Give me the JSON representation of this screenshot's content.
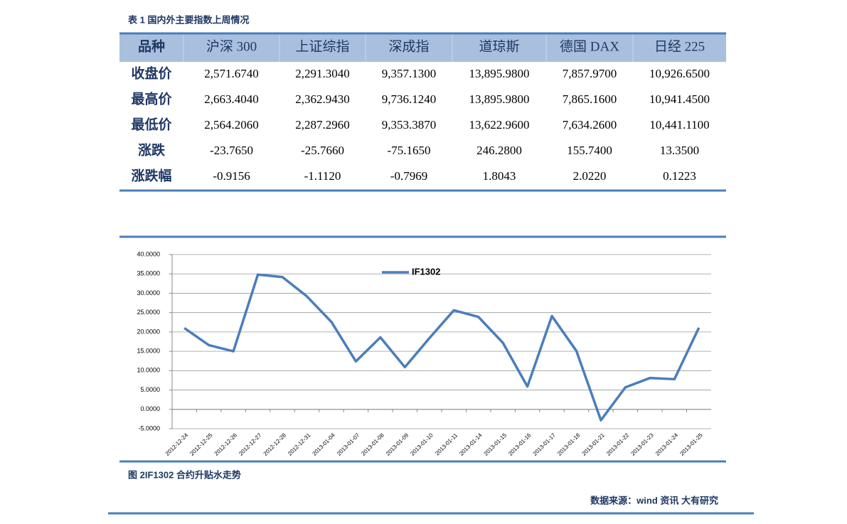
{
  "table": {
    "caption": "表 1 国内外主要指数上周情况",
    "header": [
      "品种",
      "沪深 300",
      "上证综指",
      "深成指",
      "道琼斯",
      "德国 DAX",
      "日经 225"
    ],
    "rows": [
      [
        "收盘价",
        "2,571.6740",
        "2,291.3040",
        "9,357.1300",
        "13,895.9800",
        "7,857.9700",
        "10,926.6500"
      ],
      [
        "最高价",
        "2,663.4040",
        "2,362.9430",
        "9,736.1240",
        "13,895.9800",
        "7,865.1600",
        "10,941.4500"
      ],
      [
        "最低价",
        "2,564.2060",
        "2,287.2960",
        "9,353.3870",
        "13,622.9600",
        "7,634.2600",
        "10,441.1100"
      ],
      [
        "涨跌",
        "-23.7650",
        "-25.7660",
        "-75.1650",
        "246.2800",
        "155.7400",
        "13.3500"
      ],
      [
        "涨跌幅",
        "-0.9156",
        "-1.1120",
        "-0.7969",
        "1.8043",
        "2.0220",
        "0.1223"
      ]
    ]
  },
  "chart_data": {
    "type": "line",
    "categories": [
      "2012-12-24",
      "2012-12-25",
      "2012-12-26",
      "2012-12-27",
      "2012-12-28",
      "2012-12-31",
      "2013-01-04",
      "2013-01-07",
      "2013-01-08",
      "2013-01-09",
      "2013-01-10",
      "2013-01-11",
      "2013-01-14",
      "2013-01-15",
      "2013-01-16",
      "2013-01-17",
      "2013-01-18",
      "2013-01-21",
      "2013-01-22",
      "2013-01-23",
      "2013-01-24",
      "2013-01-25"
    ],
    "series": [
      {
        "name": "IF1302",
        "color": "#4a7ebb",
        "values": [
          21.0,
          16.6,
          15.0,
          34.8,
          34.2,
          29.2,
          22.6,
          12.4,
          18.6,
          10.9,
          18.4,
          25.6,
          23.9,
          17.2,
          5.9,
          24.1,
          15.1,
          -2.8,
          5.7,
          8.1,
          7.8,
          21.1
        ]
      }
    ],
    "ylim": [
      -5,
      40
    ],
    "yticks": [
      {
        "value": -5,
        "label": "-5.0000"
      },
      {
        "value": 0,
        "label": "0.0000"
      },
      {
        "value": 5,
        "label": "5.0000"
      },
      {
        "value": 10,
        "label": "10.0000"
      },
      {
        "value": 15,
        "label": "15.0000"
      },
      {
        "value": 20,
        "label": "20.0000"
      },
      {
        "value": 25,
        "label": "25.0000"
      },
      {
        "value": 30,
        "label": "30.0000"
      },
      {
        "value": 35,
        "label": "35.0000"
      },
      {
        "value": 40,
        "label": "40.0000"
      }
    ],
    "grid": true
  },
  "figure_caption": "图 2IF1302 合约升贴水走势",
  "source": "数据来源：wind 资讯 大有研究"
}
